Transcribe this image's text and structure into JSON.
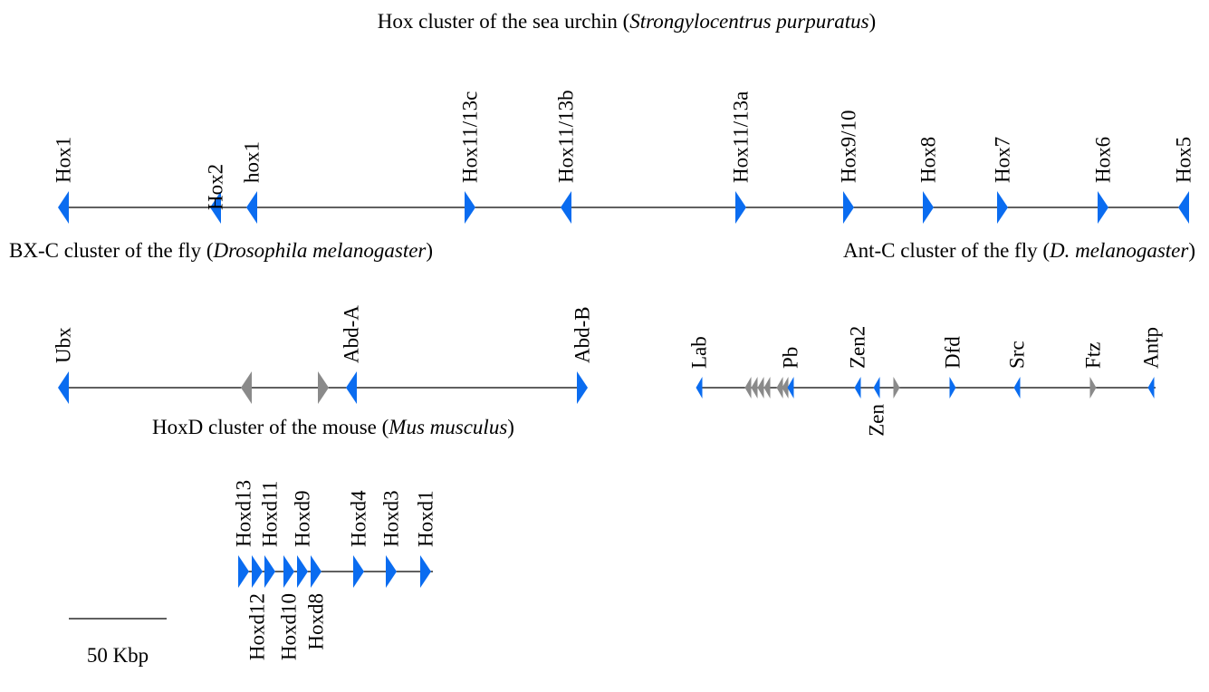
{
  "clusters": [
    {
      "title": [
        "Hox cluster of the sea urchin (",
        "Strongylocentrus purpuratus",
        ")"
      ],
      "genes": [
        "Hox1",
        "Hox2",
        "hox1",
        "Hox11/13c",
        "Hox11/13b",
        "Hox11/13a",
        "Hox9/10",
        "Hox8",
        "Hox7",
        "Hox6",
        "Hox5"
      ]
    },
    {
      "title": [
        "BX-C cluster of the fly (",
        "Drosophila melanogaster",
        ")"
      ],
      "genes": [
        "Ubx",
        "Abd-A",
        "Abd-B"
      ]
    },
    {
      "title": [
        "Ant-C cluster of the fly (",
        "D. melanogaster",
        ")"
      ],
      "genes": [
        "Lab",
        "Pb",
        "Zen2",
        "Zen",
        "Dfd",
        "Src",
        "Ftz",
        "Antp"
      ]
    },
    {
      "title": [
        "HoxD cluster of the mouse (",
        "Mus musculus",
        ")"
      ],
      "genes": [
        "Hoxd13",
        "Hoxd12",
        "Hoxd11",
        "Hoxd10",
        "Hoxd9",
        "Hoxd8",
        "Hoxd4",
        "Hoxd3",
        "Hoxd1"
      ]
    }
  ],
  "scale_bar": "50 Kbp"
}
